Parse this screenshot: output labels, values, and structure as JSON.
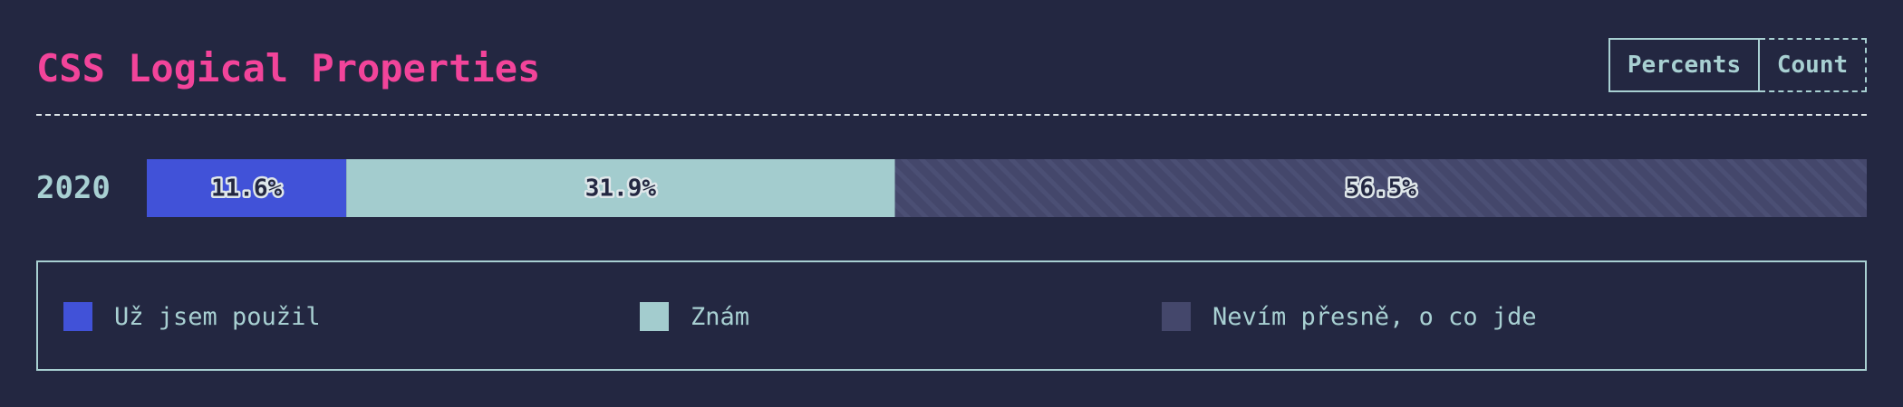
{
  "header": {
    "title": "CSS Logical Properties",
    "toggle": {
      "percents_label": "Percents",
      "count_label": "Count",
      "active": "Percents"
    }
  },
  "colors": {
    "background": "#232741",
    "title": "#f2449a",
    "accent": "#a8d0d2",
    "used": "#4152d8",
    "known": "#a3ccce",
    "unknown": "#44476b",
    "unknown_stripe": "#4b4f74"
  },
  "chart_data": {
    "type": "bar",
    "orientation": "horizontal",
    "stacked": true,
    "normalized": true,
    "title": "CSS Logical Properties",
    "categories": [
      "2020"
    ],
    "series": [
      {
        "name": "Už jsem použil",
        "values": [
          11.6
        ],
        "label": "11.6%",
        "color": "#4152d8"
      },
      {
        "name": "Znám",
        "values": [
          31.9
        ],
        "label": "31.9%",
        "color": "#a3ccce"
      },
      {
        "name": "Nevím přesně, o co jde",
        "values": [
          56.5
        ],
        "label": "56.5%",
        "color": "#44476b",
        "pattern": "diagonal-stripes"
      }
    ],
    "xlim": [
      0,
      100
    ],
    "legend_position": "bottom",
    "grid": false
  }
}
